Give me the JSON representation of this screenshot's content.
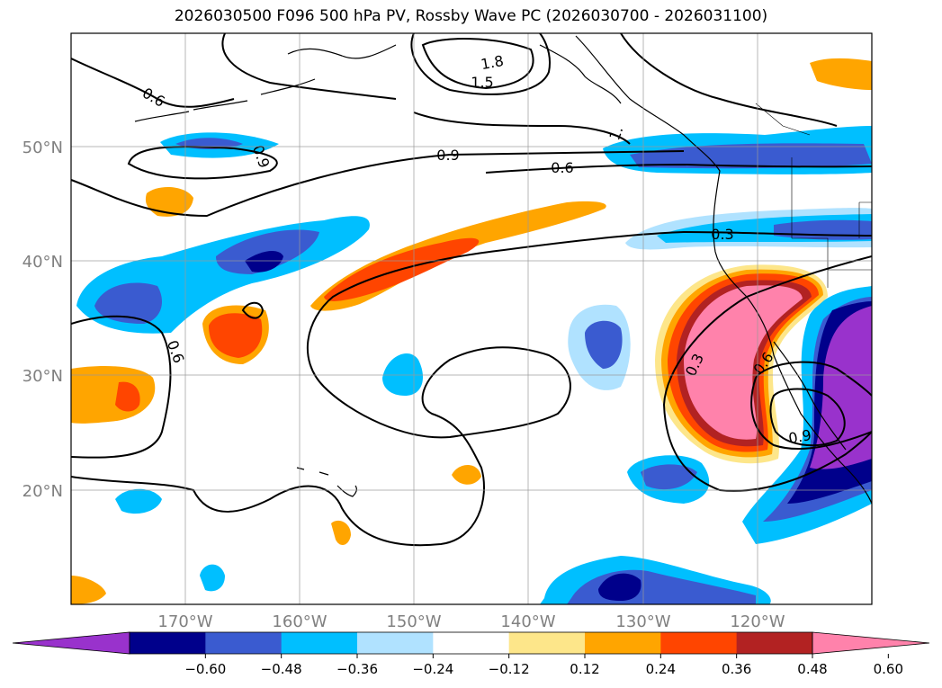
{
  "title": "2026030500 F096 500 hPa PV, Rossby Wave PC (2026030700 - 2026031100)",
  "map": {
    "lon_range": [
      -180,
      -110
    ],
    "lat_range": [
      10,
      60
    ],
    "lon_ticks": [
      "170°W",
      "160°W",
      "150°W",
      "140°W",
      "130°W",
      "120°W"
    ],
    "lat_ticks": [
      "50°N",
      "40°N",
      "30°N",
      "20°N"
    ],
    "contour_labels": [
      "0.6",
      "0.9",
      "1.8",
      "1.5",
      "1.",
      "0.9",
      "0.6",
      "0.3",
      "0.6",
      "0.3",
      "0.6",
      "0.9"
    ]
  },
  "colorbar": {
    "ticks": [
      "−0.60",
      "−0.48",
      "−0.36",
      "−0.24",
      "−0.12",
      "0.12",
      "0.24",
      "0.36",
      "0.48",
      "0.60"
    ],
    "colors": [
      "#9932cc",
      "#00008b",
      "#3a5bd0",
      "#00bfff",
      "#b0e2ff",
      "#ffffff",
      "#fde68a",
      "#ffa500",
      "#ff4500",
      "#b22222",
      "#ff82ab"
    ]
  }
}
